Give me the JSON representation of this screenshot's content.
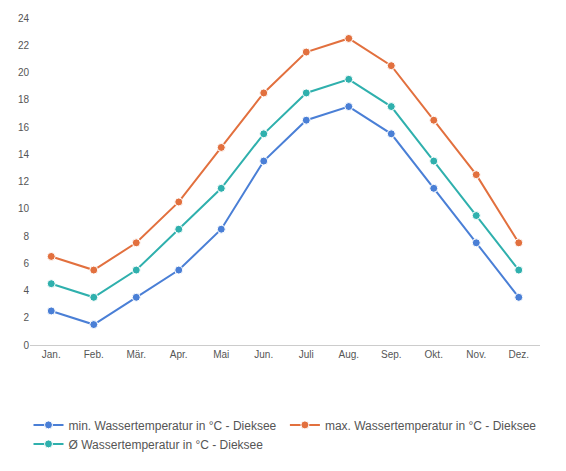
{
  "chart_data": {
    "type": "line",
    "categories": [
      "Jan.",
      "Feb.",
      "Mär.",
      "Apr.",
      "Mai",
      "Jun.",
      "Juli",
      "Aug.",
      "Sep.",
      "Okt.",
      "Nov.",
      "Dez."
    ],
    "series": [
      {
        "name": "min. Wassertemperatur in °C - Dieksee",
        "color": "#4a7fd6",
        "values": [
          2.5,
          1.5,
          3.5,
          5.5,
          8.5,
          13.5,
          16.5,
          17.5,
          15.5,
          11.5,
          7.5,
          3.5
        ]
      },
      {
        "name": "max. Wassertemperatur in °C - Dieksee",
        "color": "#e2703e",
        "values": [
          6.5,
          5.5,
          7.5,
          10.5,
          14.5,
          18.5,
          21.5,
          22.5,
          20.5,
          16.5,
          12.5,
          7.5
        ]
      },
      {
        "name": "Ø Wassertemperatur in °C - Dieksee",
        "color": "#2fb0ad",
        "values": [
          4.5,
          3.5,
          5.5,
          8.5,
          11.5,
          15.5,
          18.5,
          19.5,
          17.5,
          13.5,
          9.5,
          5.5
        ]
      }
    ],
    "ylim": [
      0,
      24
    ],
    "yticks": [
      0,
      2,
      4,
      6,
      8,
      10,
      12,
      14,
      16,
      18,
      20,
      22,
      24
    ],
    "grid": false,
    "legend": "bottom",
    "marker": "circle"
  }
}
